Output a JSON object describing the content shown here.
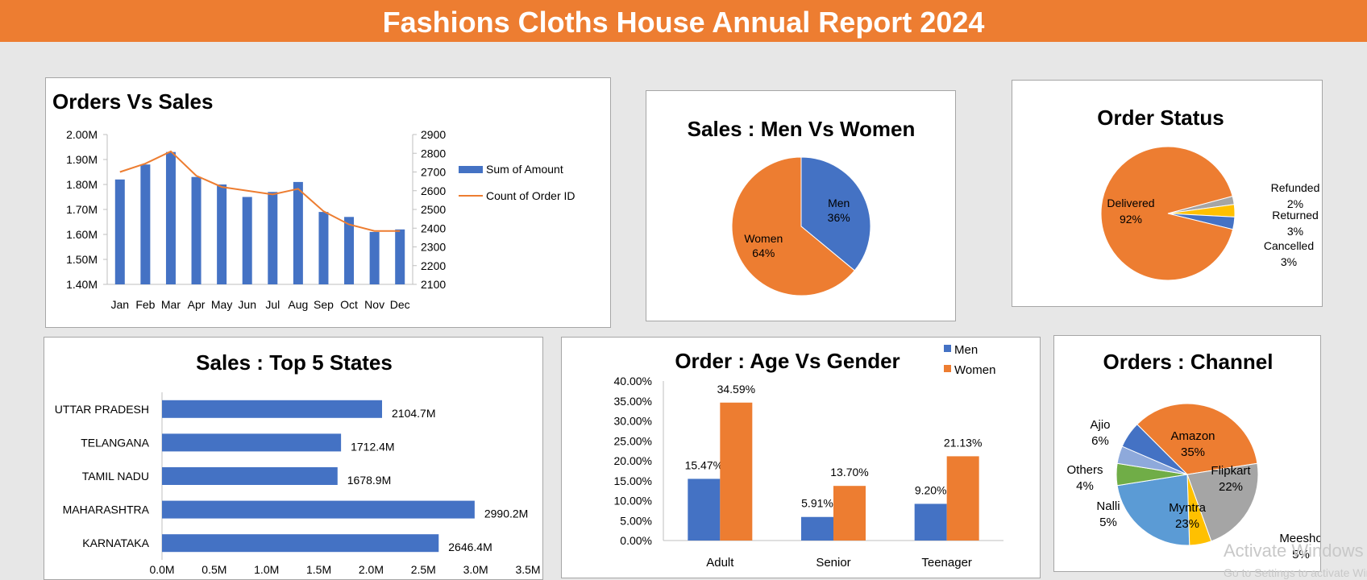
{
  "header": {
    "title": "Fashions Cloths House Annual Report 2024"
  },
  "watermark": {
    "line1": "Activate Windows",
    "line2": "Go to Settings to activate Windows."
  },
  "colors": {
    "blue": "#4472c4",
    "orange": "#ed7d31",
    "gray": "#a5a5a5",
    "yellow": "#ffc000",
    "lightblue": "#5b9bd5",
    "green": "#70ad47"
  },
  "chart_data": [
    {
      "id": "orders_vs_sales",
      "type": "bar",
      "title": "Orders Vs Sales",
      "categories": [
        "Jan",
        "Feb",
        "Mar",
        "Apr",
        "May",
        "Jun",
        "Jul",
        "Aug",
        "Sep",
        "Oct",
        "Nov",
        "Dec"
      ],
      "series": [
        {
          "name": "Sum of Amount",
          "type": "bar",
          "axis": "left",
          "values": [
            1.82,
            1.88,
            1.93,
            1.83,
            1.8,
            1.75,
            1.77,
            1.81,
            1.69,
            1.67,
            1.61,
            1.62
          ]
        },
        {
          "name": "Count of Order ID",
          "type": "line",
          "axis": "right",
          "values": [
            2700,
            2745,
            2810,
            2680,
            2620,
            2600,
            2580,
            2610,
            2490,
            2420,
            2385,
            2385
          ]
        }
      ],
      "yleft": {
        "min": 1.4,
        "max": 2.0,
        "ticks": [
          "1.40M",
          "1.50M",
          "1.60M",
          "1.70M",
          "1.80M",
          "1.90M",
          "2.00M"
        ]
      },
      "yright": {
        "min": 2100,
        "max": 2900,
        "ticks": [
          "2100",
          "2200",
          "2300",
          "2400",
          "2500",
          "2600",
          "2700",
          "2800",
          "2900"
        ]
      },
      "legend": "right"
    },
    {
      "id": "sales_men_women",
      "type": "pie",
      "title": "Sales : Men Vs Women",
      "slices": [
        {
          "label": "Men",
          "value": 36,
          "pct": "36%",
          "color": "#4472c4"
        },
        {
          "label": "Women",
          "value": 64,
          "pct": "64%",
          "color": "#ed7d31"
        }
      ]
    },
    {
      "id": "order_status",
      "type": "pie",
      "title": "Order Status",
      "slices": [
        {
          "label": "Refunded",
          "value": 2,
          "pct": "2%",
          "color": "#a5a5a5"
        },
        {
          "label": "Returned",
          "value": 3,
          "pct": "3%",
          "color": "#ffc000"
        },
        {
          "label": "Cancelled",
          "value": 3,
          "pct": "3%",
          "color": "#4472c4"
        },
        {
          "label": "Delivered",
          "value": 92,
          "pct": "92%",
          "color": "#ed7d31"
        }
      ]
    },
    {
      "id": "top5_states",
      "type": "bar",
      "orientation": "horizontal",
      "title": "Sales : Top 5 States",
      "categories": [
        "UTTAR PRADESH",
        "TELANGANA",
        "TAMIL NADU",
        "MAHARASHTRA",
        "KARNATAKA"
      ],
      "values": [
        2104.7,
        1712.4,
        1678.9,
        2990.2,
        2646.4
      ],
      "labels": [
        "2104.7M",
        "1712.4M",
        "1678.9M",
        "2990.2M",
        "2646.4M"
      ],
      "xticks": [
        "0.0M",
        "0.5M",
        "1.0M",
        "1.5M",
        "2.0M",
        "2.5M",
        "3.0M",
        "3.5M"
      ],
      "xlim": [
        0,
        3500
      ]
    },
    {
      "id": "age_gender",
      "type": "bar",
      "title": "Order : Age Vs Gender",
      "categories": [
        "Adult",
        "Senior",
        "Teenager"
      ],
      "series": [
        {
          "name": "Men",
          "values": [
            15.47,
            5.91,
            9.2
          ],
          "labels": [
            "15.47%",
            "5.91%",
            "9.20%"
          ],
          "color": "#4472c4"
        },
        {
          "name": "Women",
          "values": [
            34.59,
            13.7,
            21.13
          ],
          "labels": [
            "34.59%",
            "13.70%",
            "21.13%"
          ],
          "color": "#ed7d31"
        }
      ],
      "yticks": [
        "0.00%",
        "5.00%",
        "10.00%",
        "15.00%",
        "20.00%",
        "25.00%",
        "30.00%",
        "35.00%",
        "40.00%"
      ],
      "ylim": [
        0,
        40
      ],
      "legend": "top-right"
    },
    {
      "id": "orders_channel",
      "type": "pie",
      "title": "Orders : Channel",
      "slices": [
        {
          "label": "Amazon",
          "value": 35,
          "pct": "35%",
          "color": "#ed7d31"
        },
        {
          "label": "Flipkart",
          "value": 22,
          "pct": "22%",
          "color": "#a5a5a5"
        },
        {
          "label": "Meesho",
          "value": 5,
          "pct": "5%",
          "color": "#ffc000"
        },
        {
          "label": "Myntra",
          "value": 23,
          "pct": "23%",
          "color": "#5b9bd5"
        },
        {
          "label": "Nalli",
          "value": 5,
          "pct": "5%",
          "color": "#70ad47"
        },
        {
          "label": "Others",
          "value": 4,
          "pct": "4%",
          "color": "#8ea9db"
        },
        {
          "label": "Ajio",
          "value": 6,
          "pct": "6%",
          "color": "#4472c4"
        }
      ]
    }
  ]
}
